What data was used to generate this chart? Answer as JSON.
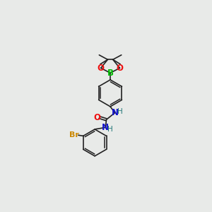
{
  "background_color": "#e8eae8",
  "bond_color": "#222222",
  "O_color": "#ee1111",
  "B_color": "#00bb00",
  "N_color": "#1111cc",
  "Br_color": "#cc8800",
  "H_color": "#227777",
  "fig_size": [
    3.0,
    3.0
  ],
  "dpi": 100,
  "xlim": [
    0,
    10
  ],
  "ylim": [
    0,
    10
  ]
}
